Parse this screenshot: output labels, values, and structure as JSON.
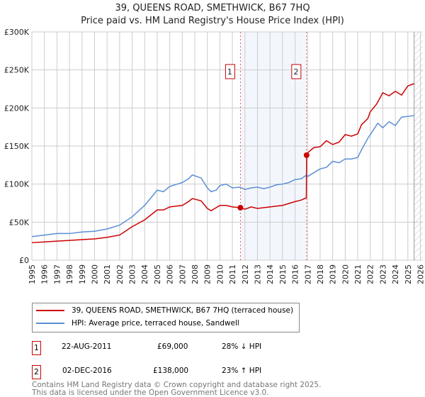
{
  "chart_data": {
    "type": "line",
    "title": "39, QUEENS ROAD, SMETHWICK, B67 7HQ",
    "subtitle": "Price paid vs. HM Land Registry's House Price Index (HPI)",
    "xlim": [
      1995,
      2026
    ],
    "ylim": [
      0,
      300000
    ],
    "yticks": [
      0,
      50000,
      100000,
      150000,
      200000,
      250000,
      300000
    ],
    "ytick_labels": [
      "£0",
      "£50K",
      "£100K",
      "£150K",
      "£200K",
      "£250K",
      "£300K"
    ],
    "xticks": [
      "1995",
      "1996",
      "1997",
      "1998",
      "1999",
      "2000",
      "2001",
      "2002",
      "2003",
      "2004",
      "2005",
      "2006",
      "2007",
      "2008",
      "2009",
      "2010",
      "2011",
      "2012",
      "2013",
      "2014",
      "2015",
      "2016",
      "2017",
      "2018",
      "2019",
      "2020",
      "2021",
      "2022",
      "2023",
      "2024",
      "2025",
      "2026"
    ],
    "grid": true,
    "shaded_range": [
      2011.64,
      2016.92
    ],
    "hatched_from": 2025.5,
    "series": [
      {
        "name": "39, QUEENS ROAD, SMETHWICK, B67 7HQ (terraced house)",
        "color": "#cc0000",
        "x": [
          1995,
          1996,
          1997,
          1998,
          1999,
          2000,
          2001,
          2002,
          2003,
          2004,
          2005,
          2005.5,
          2006,
          2007,
          2007.5,
          2007.8,
          2008.5,
          2009,
          2009.3,
          2010,
          2010.5,
          2011,
          2011.64,
          2012,
          2012.5,
          2013,
          2014,
          2014.5,
          2015,
          2016,
          2016.5,
          2016.9,
          2016.92,
          2017,
          2017.5,
          2018,
          2018.5,
          2019,
          2019.5,
          2020,
          2020.5,
          2021,
          2021.3,
          2021.8,
          2022,
          2022.5,
          2023,
          2023.5,
          2024,
          2024.5,
          2025,
          2025.5
        ],
        "y": [
          23000,
          24000,
          25000,
          26000,
          27000,
          28000,
          30000,
          33000,
          44000,
          53000,
          66000,
          66000,
          70000,
          72000,
          77000,
          81000,
          78000,
          68000,
          65000,
          72000,
          72000,
          70000,
          69000,
          67000,
          70000,
          68000,
          70000,
          71000,
          72000,
          77000,
          79000,
          82000,
          138000,
          141000,
          148000,
          149000,
          157000,
          152000,
          155000,
          165000,
          163000,
          166000,
          178000,
          186000,
          195000,
          205000,
          220000,
          216000,
          222000,
          217000,
          229000,
          232000
        ]
      },
      {
        "name": "HPI: Average price, terraced house, Sandwell",
        "color": "#5b8fd4",
        "x": [
          1995,
          1996,
          1997,
          1998,
          1999,
          2000,
          2001,
          2002,
          2003,
          2004,
          2005,
          2005.5,
          2006,
          2007,
          2007.5,
          2007.8,
          2008.5,
          2009,
          2009.3,
          2009.7,
          2010,
          2010.5,
          2011,
          2011.6,
          2012,
          2012.5,
          2013,
          2013.5,
          2014,
          2014.5,
          2015,
          2015.5,
          2016,
          2016.5,
          2016.92,
          2017,
          2017.5,
          2018,
          2018.5,
          2019,
          2019.5,
          2020,
          2020.5,
          2021,
          2021.3,
          2021.8,
          2022.6,
          2023,
          2023.5,
          2024,
          2024.5,
          2025.5
        ],
        "y": [
          31000,
          33000,
          35000,
          35000,
          37000,
          38000,
          41000,
          46000,
          57000,
          72000,
          92000,
          90000,
          97000,
          102000,
          107000,
          112000,
          108000,
          95000,
          90000,
          92000,
          98000,
          100000,
          95000,
          96000,
          93000,
          95000,
          96000,
          94000,
          96000,
          99000,
          100000,
          102000,
          106000,
          107000,
          112000,
          110000,
          115000,
          120000,
          122000,
          130000,
          128000,
          133000,
          133000,
          135000,
          145000,
          160000,
          180000,
          174000,
          182000,
          177000,
          188000,
          190000
        ]
      }
    ],
    "markers": [
      {
        "label": "1",
        "x": 2011.64,
        "y": 69000
      },
      {
        "label": "2",
        "x": 2016.92,
        "y": 138000
      }
    ]
  },
  "legend": {
    "items": [
      "39, QUEENS ROAD, SMETHWICK, B67 7HQ (terraced house)",
      "HPI: Average price, terraced house, Sandwell"
    ]
  },
  "transactions": [
    {
      "num": "1",
      "date": "22-AUG-2011",
      "price": "£69,000",
      "hpi": "28% ↓ HPI"
    },
    {
      "num": "2",
      "date": "02-DEC-2016",
      "price": "£138,000",
      "hpi": "23% ↑ HPI"
    }
  ],
  "footer": {
    "line1": "Contains HM Land Registry data © Crown copyright and database right 2025.",
    "line2": "This data is licensed under the Open Government Licence v3.0."
  }
}
